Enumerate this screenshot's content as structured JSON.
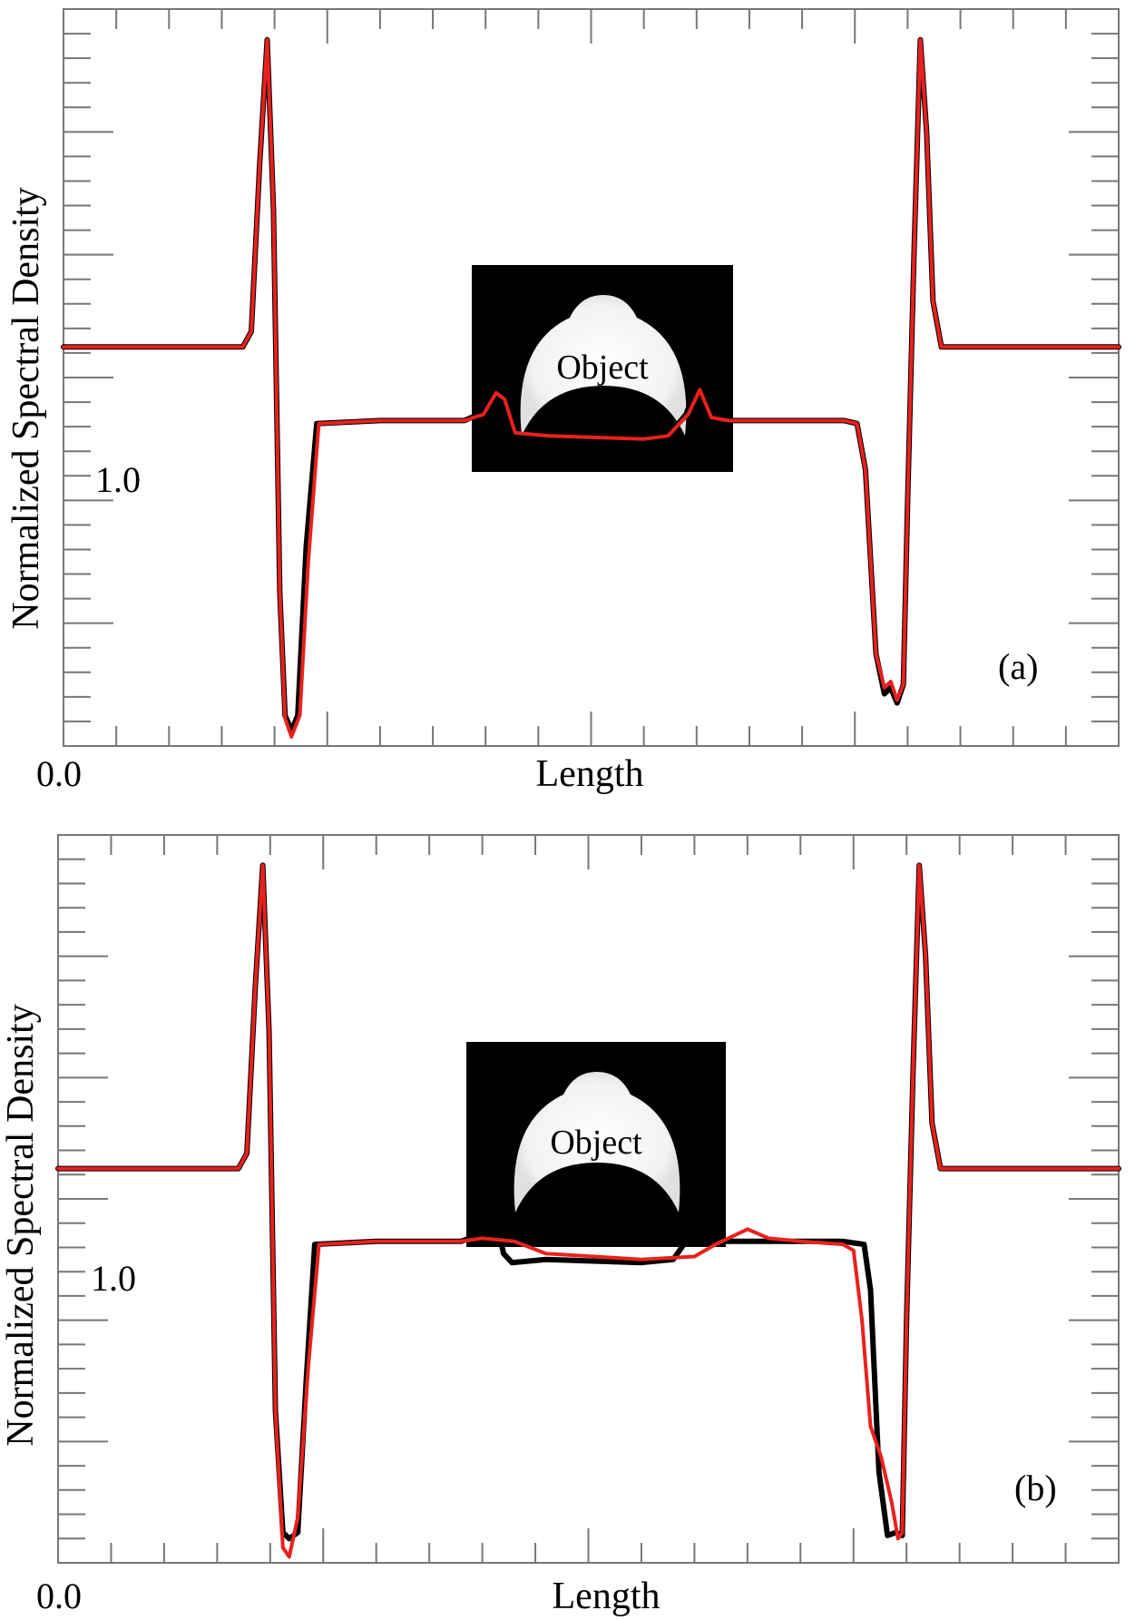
{
  "chart_data": [
    {
      "type": "line",
      "panel_label": "(a)",
      "xlabel": "Length",
      "ylabel": "Normalized Spectral Density",
      "x_tick_label": "0.0",
      "y_tick_label": "1.0",
      "inset": {
        "label": "Object"
      },
      "xlim": [
        0,
        1
      ],
      "ylim": [
        -0.3,
        2.1
      ],
      "grid": false,
      "series": [
        {
          "color": "#000000",
          "points": [
            [
              0,
              1.0
            ],
            [
              0.17,
              1.0
            ],
            [
              0.178,
              1.05
            ],
            [
              0.186,
              1.6
            ],
            [
              0.193,
              2.0
            ],
            [
              0.199,
              1.45
            ],
            [
              0.205,
              0.2
            ],
            [
              0.21,
              -0.2
            ],
            [
              0.216,
              -0.25
            ],
            [
              0.222,
              -0.2
            ],
            [
              0.23,
              0.35
            ],
            [
              0.24,
              0.75
            ],
            [
              0.3,
              0.76
            ],
            [
              0.38,
              0.76
            ],
            [
              0.4,
              0.79
            ],
            [
              0.412,
              0.87
            ],
            [
              0.42,
              0.84
            ],
            [
              0.432,
              0.7
            ],
            [
              0.46,
              0.71
            ],
            [
              0.55,
              0.7
            ],
            [
              0.573,
              0.71
            ],
            [
              0.59,
              0.78
            ],
            [
              0.6,
              0.87
            ],
            [
              0.612,
              0.78
            ],
            [
              0.63,
              0.76
            ],
            [
              0.74,
              0.76
            ],
            [
              0.752,
              0.75
            ],
            [
              0.76,
              0.6
            ],
            [
              0.77,
              0.0
            ],
            [
              0.778,
              -0.13
            ],
            [
              0.784,
              -0.11
            ],
            [
              0.79,
              -0.16
            ],
            [
              0.796,
              -0.1
            ],
            [
              0.8,
              0.5
            ],
            [
              0.806,
              1.3
            ],
            [
              0.812,
              2.0
            ],
            [
              0.818,
              1.7
            ],
            [
              0.824,
              1.15
            ],
            [
              0.832,
              1.0
            ],
            [
              1,
              1.0
            ]
          ]
        },
        {
          "color": "#e8211e",
          "points": [
            [
              0,
              1.0
            ],
            [
              0.17,
              1.0
            ],
            [
              0.178,
              1.05
            ],
            [
              0.186,
              1.6
            ],
            [
              0.193,
              2.0
            ],
            [
              0.199,
              1.45
            ],
            [
              0.205,
              0.2
            ],
            [
              0.21,
              -0.21
            ],
            [
              0.216,
              -0.27
            ],
            [
              0.224,
              -0.2
            ],
            [
              0.232,
              0.3
            ],
            [
              0.242,
              0.75
            ],
            [
              0.3,
              0.76
            ],
            [
              0.38,
              0.76
            ],
            [
              0.398,
              0.78
            ],
            [
              0.41,
              0.85
            ],
            [
              0.418,
              0.83
            ],
            [
              0.428,
              0.72
            ],
            [
              0.46,
              0.71
            ],
            [
              0.55,
              0.7
            ],
            [
              0.573,
              0.71
            ],
            [
              0.592,
              0.78
            ],
            [
              0.603,
              0.86
            ],
            [
              0.614,
              0.77
            ],
            [
              0.63,
              0.76
            ],
            [
              0.74,
              0.76
            ],
            [
              0.752,
              0.75
            ],
            [
              0.76,
              0.6
            ],
            [
              0.77,
              0.0
            ],
            [
              0.778,
              -0.11
            ],
            [
              0.784,
              -0.09
            ],
            [
              0.79,
              -0.15
            ],
            [
              0.796,
              -0.1
            ],
            [
              0.8,
              0.5
            ],
            [
              0.806,
              1.3
            ],
            [
              0.812,
              2.0
            ],
            [
              0.818,
              1.7
            ],
            [
              0.824,
              1.15
            ],
            [
              0.832,
              1.0
            ],
            [
              1,
              1.0
            ]
          ]
        }
      ]
    },
    {
      "type": "line",
      "panel_label": "(b)",
      "xlabel": "Length",
      "ylabel": "Normalized Spectral Density",
      "x_tick_label": "0.0",
      "y_tick_label": "1.0",
      "inset": {
        "label": "Object"
      },
      "xlim": [
        0,
        1
      ],
      "ylim": [
        -0.3,
        2.1
      ],
      "grid": false,
      "series": [
        {
          "color": "#000000",
          "points": [
            [
              0,
              1.0
            ],
            [
              0.17,
              1.0
            ],
            [
              0.178,
              1.05
            ],
            [
              0.186,
              1.6
            ],
            [
              0.193,
              2.0
            ],
            [
              0.199,
              1.45
            ],
            [
              0.205,
              0.2
            ],
            [
              0.212,
              -0.2
            ],
            [
              0.218,
              -0.22
            ],
            [
              0.226,
              -0.2
            ],
            [
              0.234,
              0.3
            ],
            [
              0.242,
              0.75
            ],
            [
              0.3,
              0.76
            ],
            [
              0.38,
              0.76
            ],
            [
              0.396,
              0.78
            ],
            [
              0.404,
              0.9
            ],
            [
              0.412,
              0.85
            ],
            [
              0.42,
              0.72
            ],
            [
              0.428,
              0.69
            ],
            [
              0.46,
              0.7
            ],
            [
              0.55,
              0.69
            ],
            [
              0.58,
              0.7
            ],
            [
              0.59,
              0.75
            ],
            [
              0.598,
              0.89
            ],
            [
              0.606,
              0.85
            ],
            [
              0.614,
              0.76
            ],
            [
              0.63,
              0.76
            ],
            [
              0.74,
              0.76
            ],
            [
              0.76,
              0.75
            ],
            [
              0.766,
              0.6
            ],
            [
              0.774,
              0.0
            ],
            [
              0.782,
              -0.21
            ],
            [
              0.79,
              -0.2
            ],
            [
              0.796,
              -0.21
            ],
            [
              0.8,
              0.5
            ],
            [
              0.806,
              1.3
            ],
            [
              0.812,
              2.0
            ],
            [
              0.818,
              1.7
            ],
            [
              0.824,
              1.15
            ],
            [
              0.832,
              1.0
            ],
            [
              1,
              1.0
            ]
          ]
        },
        {
          "color": "#e8211e",
          "points": [
            [
              0,
              1.0
            ],
            [
              0.17,
              1.0
            ],
            [
              0.178,
              1.05
            ],
            [
              0.186,
              1.6
            ],
            [
              0.193,
              2.0
            ],
            [
              0.199,
              1.45
            ],
            [
              0.205,
              0.2
            ],
            [
              0.212,
              -0.25
            ],
            [
              0.218,
              -0.28
            ],
            [
              0.226,
              -0.15
            ],
            [
              0.236,
              0.35
            ],
            [
              0.246,
              0.75
            ],
            [
              0.3,
              0.76
            ],
            [
              0.38,
              0.76
            ],
            [
              0.4,
              0.77
            ],
            [
              0.43,
              0.76
            ],
            [
              0.46,
              0.72
            ],
            [
              0.55,
              0.7
            ],
            [
              0.6,
              0.71
            ],
            [
              0.62,
              0.75
            ],
            [
              0.65,
              0.8
            ],
            [
              0.67,
              0.77
            ],
            [
              0.7,
              0.76
            ],
            [
              0.74,
              0.75
            ],
            [
              0.75,
              0.73
            ],
            [
              0.758,
              0.5
            ],
            [
              0.766,
              0.15
            ],
            [
              0.776,
              0.05
            ],
            [
              0.786,
              -0.1
            ],
            [
              0.792,
              -0.22
            ],
            [
              0.796,
              -0.2
            ],
            [
              0.8,
              0.5
            ],
            [
              0.806,
              1.3
            ],
            [
              0.812,
              2.0
            ],
            [
              0.818,
              1.7
            ],
            [
              0.824,
              1.15
            ],
            [
              0.832,
              1.0
            ],
            [
              1,
              1.0
            ]
          ]
        }
      ]
    }
  ]
}
